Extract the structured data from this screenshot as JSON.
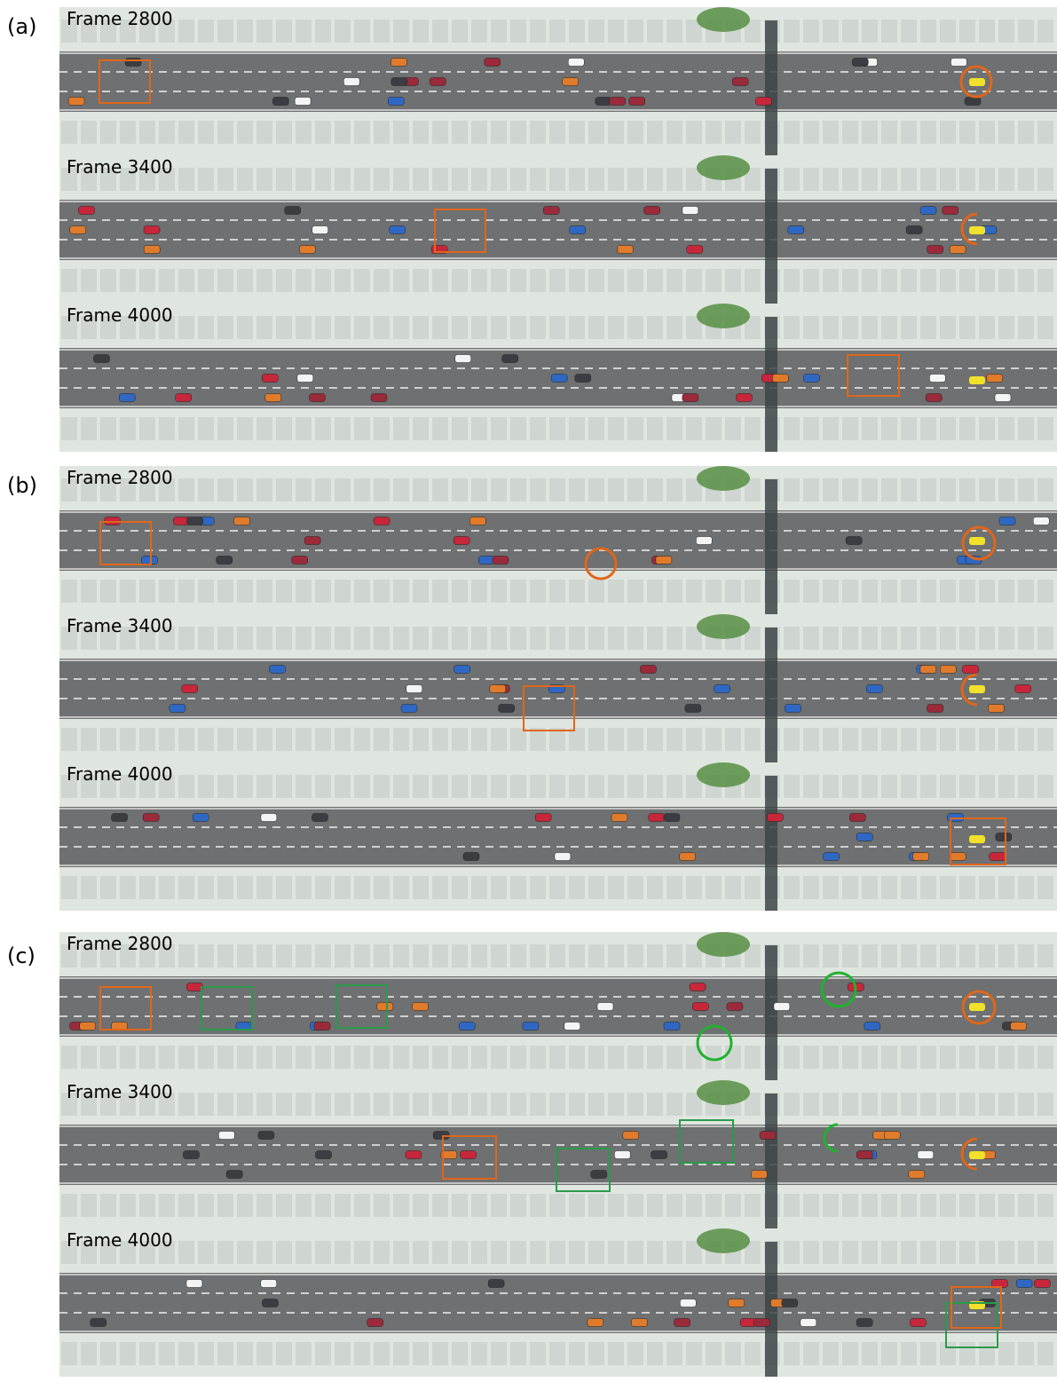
{
  "panels": [
    {
      "label": "(a)",
      "frames": [
        "Frame 2800",
        "Frame 3400",
        "Frame 4000"
      ]
    },
    {
      "label": "(b)",
      "frames": [
        "Frame 2800",
        "Frame 3400",
        "Frame 4000"
      ]
    },
    {
      "label": "(c)",
      "frames": [
        "Frame 2800",
        "Frame 3400",
        "Frame 4000"
      ]
    }
  ]
}
